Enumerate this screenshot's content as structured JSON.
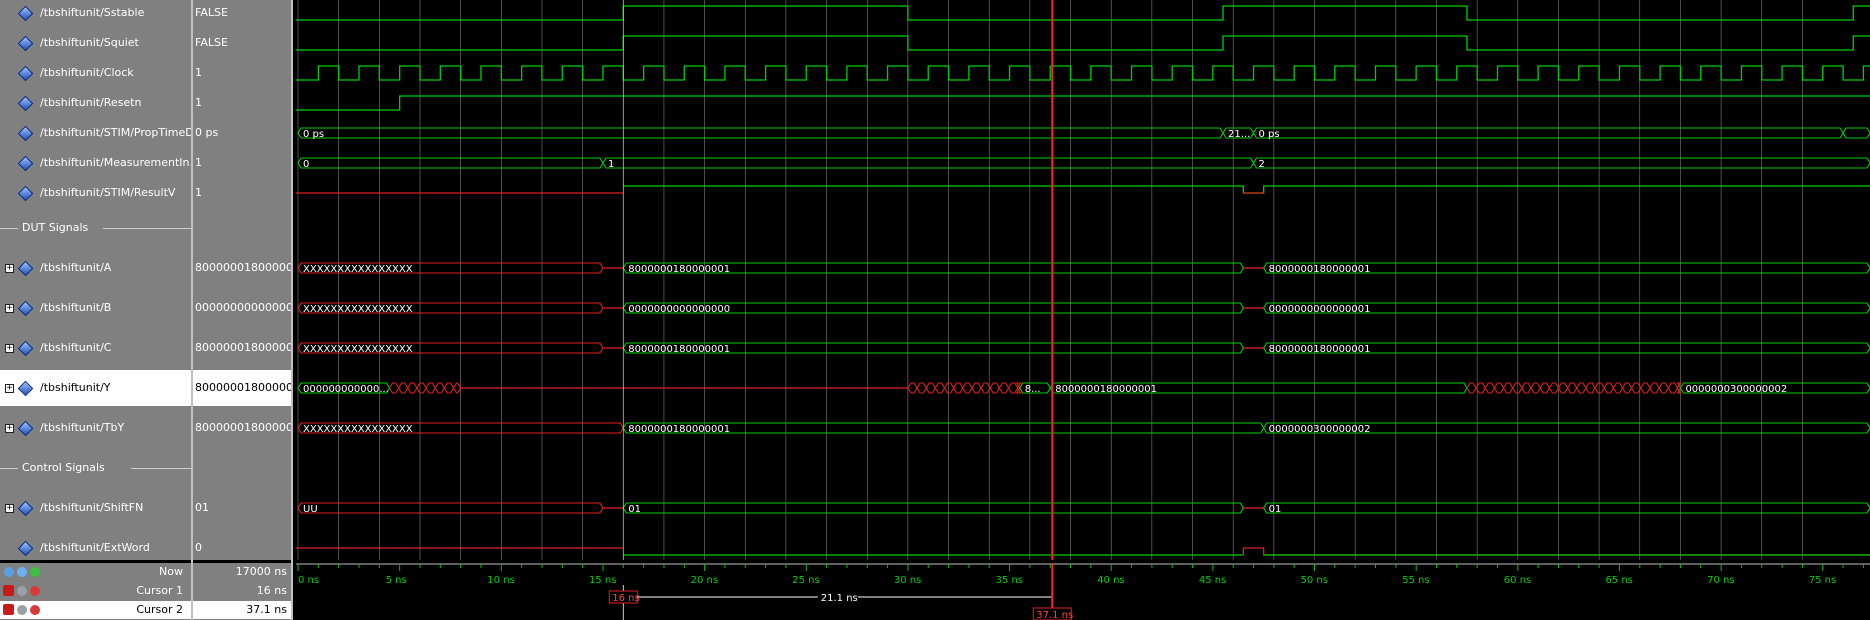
{
  "signals": [
    {
      "name": "/tbshiftunit/Sstable",
      "value": "FALSE",
      "expandable": false
    },
    {
      "name": "/tbshiftunit/Squiet",
      "value": "FALSE",
      "expandable": false
    },
    {
      "name": "/tbshiftunit/Clock",
      "value": "1",
      "expandable": false
    },
    {
      "name": "/tbshiftunit/Resetn",
      "value": "1",
      "expandable": false
    },
    {
      "name": "/tbshiftunit/STIM/PropTimeD...",
      "value": "0 ps",
      "expandable": false
    },
    {
      "name": "/tbshiftunit/MeasurementIn...",
      "value": "1",
      "expandable": false
    },
    {
      "name": "/tbshiftunit/STIM/ResultV",
      "value": "1",
      "expandable": false
    },
    {
      "name": "/tbshiftunit/A",
      "value": "8000000180000001",
      "expandable": true
    },
    {
      "name": "/tbshiftunit/B",
      "value": "0000000000000000",
      "expandable": true
    },
    {
      "name": "/tbshiftunit/C",
      "value": "8000000180000001",
      "expandable": true
    },
    {
      "name": "/tbshiftunit/Y",
      "value": "8000000180000001",
      "expandable": true,
      "selected": true
    },
    {
      "name": "/tbshiftunit/TbY",
      "value": "8000000180000001",
      "expandable": true
    },
    {
      "name": "/tbshiftunit/ShiftFN",
      "value": "01",
      "expandable": true
    },
    {
      "name": "/tbshiftunit/ExtWord",
      "value": "0",
      "expandable": false
    }
  ],
  "dividers": [
    "DUT Signals",
    "Control Signals"
  ],
  "wave_labels": {
    "prop_start": "0 ps",
    "prop_mid": "21...",
    "prop_after": "0 ps",
    "meas_0": "0",
    "meas_1": "1",
    "meas_2": "2",
    "a_x": "XXXXXXXXXXXXXXXX",
    "a_v1": "8000000180000001",
    "a_v2": "8000000180000001",
    "b_x": "XXXXXXXXXXXXXXXX",
    "b_v1": "0000000000000000",
    "b_v2": "0000000000000001",
    "c_x": "XXXXXXXXXXXXXXXX",
    "c_v1": "8000000180000001",
    "c_v2": "8000000180000001",
    "y_v0": "000000000000...",
    "y_v1": "8...",
    "y_v2": "8000000180000001",
    "y_v3": "0000000300000002",
    "tby_x": "XXXXXXXXXXXXXXXX",
    "tby_v1": "8000000180000001",
    "tby_v2": "0000000300000002",
    "sfn_u": "UU",
    "sfn_v1": "01",
    "sfn_v2": "01"
  },
  "status": {
    "now_label": "Now",
    "now_value": "17000 ns",
    "cursor1_label": "Cursor 1",
    "cursor1_value": "16 ns",
    "cursor2_label": "Cursor 2",
    "cursor2_value": "37.1 ns"
  },
  "timeline": {
    "ticks": [
      "0 ns",
      "5 ns",
      "10 ns",
      "15 ns",
      "20 ns",
      "25 ns",
      "30 ns",
      "35 ns",
      "40 ns",
      "45 ns",
      "50 ns",
      "55 ns",
      "60 ns",
      "65 ns",
      "70 ns",
      "75 ns"
    ],
    "cursor1_tag": "16 ns",
    "cursor2_tag": "37.1 ns",
    "delta_label": "21.1 ns"
  },
  "colors": {
    "wave_green": "#00d000",
    "wave_red": "#e02020",
    "grid": "#b8b8b8",
    "cursor": "#ff2020",
    "panel": "#808080"
  }
}
